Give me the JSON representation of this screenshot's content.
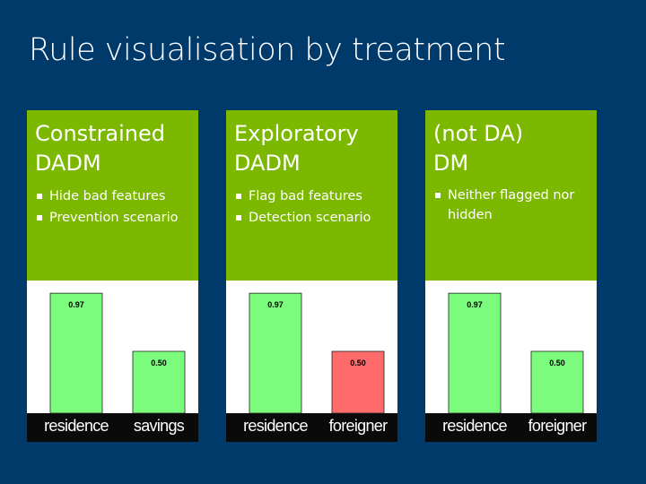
{
  "slide": {
    "title": "Rule visualisation by treatment"
  },
  "panels": [
    {
      "heading": [
        "Constrained",
        "DADM"
      ],
      "bullets": [
        "Hide bad features",
        "Prevention scenario"
      ]
    },
    {
      "heading": [
        "Exploratory",
        "DADM"
      ],
      "bullets": [
        "Flag bad features",
        "Detection scenario"
      ]
    },
    {
      "heading": [
        "(not DA)",
        "DM"
      ],
      "bullets": [
        "Neither flagged nor hidden"
      ]
    }
  ],
  "colors": {
    "background": "#003a6b",
    "panel_green": "#7cb800",
    "bar_green": "#7cfc7c",
    "bar_red": "#ff6b6b",
    "label_band": "#0a0a0a"
  },
  "chart_data": [
    {
      "type": "bar",
      "categories": [
        "residence",
        "savings"
      ],
      "values": [
        0.97,
        0.5
      ],
      "data_labels": [
        "0.97",
        "0.50"
      ],
      "bar_colors": [
        "#7cfc7c",
        "#7cfc7c"
      ],
      "ylim": [
        0,
        1
      ]
    },
    {
      "type": "bar",
      "categories": [
        "residence",
        "foreigner"
      ],
      "values": [
        0.97,
        0.5
      ],
      "data_labels": [
        "0.97",
        "0.50"
      ],
      "bar_colors": [
        "#7cfc7c",
        "#ff6b6b"
      ],
      "ylim": [
        0,
        1
      ]
    },
    {
      "type": "bar",
      "categories": [
        "residence",
        "foreigner"
      ],
      "values": [
        0.97,
        0.5
      ],
      "data_labels": [
        "0.97",
        "0.50"
      ],
      "bar_colors": [
        "#7cfc7c",
        "#7cfc7c"
      ],
      "ylim": [
        0,
        1
      ]
    }
  ]
}
